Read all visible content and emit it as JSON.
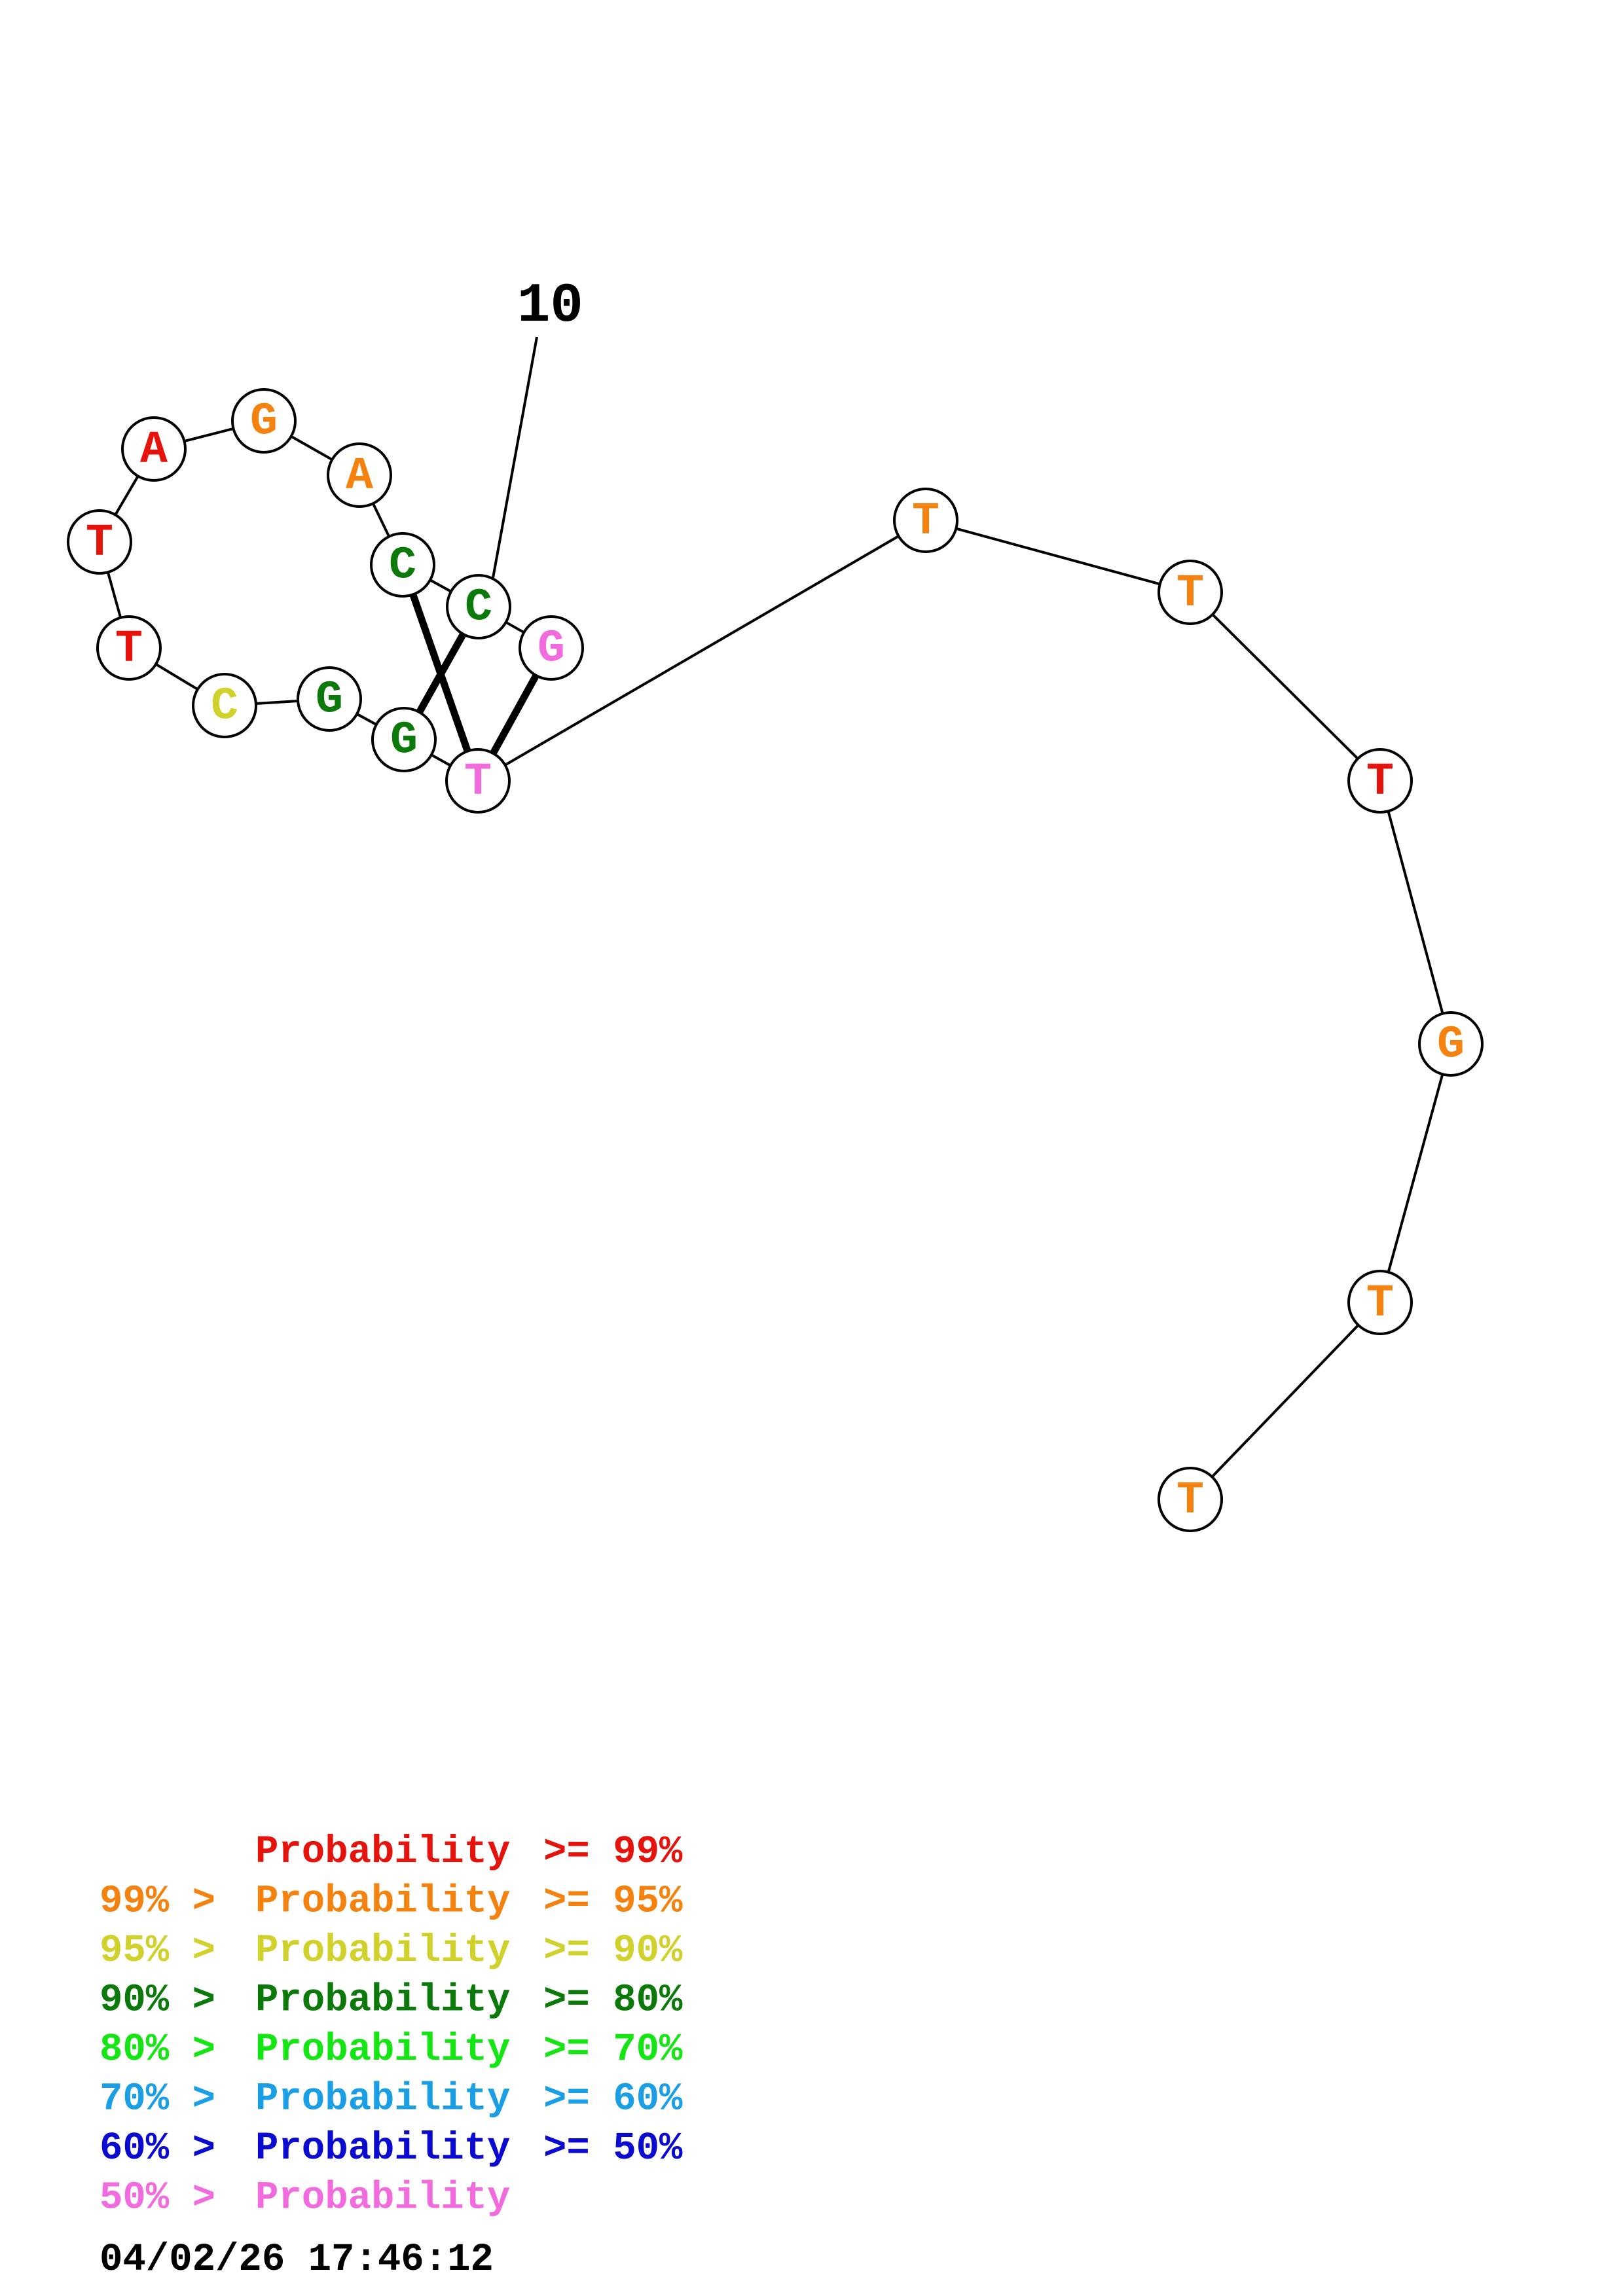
{
  "structure": {
    "nucleotides": [
      {
        "base": "G",
        "color": "#f26bde"
      },
      {
        "base": "C",
        "color": "#0b7a0b"
      },
      {
        "base": "C",
        "color": "#0b7a0b"
      },
      {
        "base": "A",
        "color": "#f5820f"
      },
      {
        "base": "G",
        "color": "#f5820f"
      },
      {
        "base": "A",
        "color": "#e6120c"
      },
      {
        "base": "T",
        "color": "#e6120c"
      },
      {
        "base": "T",
        "color": "#e6120c"
      },
      {
        "base": "C",
        "color": "#d1d12c"
      },
      {
        "base": "G",
        "color": "#0b7a0b"
      },
      {
        "base": "G",
        "color": "#0b7a0b"
      },
      {
        "base": "T",
        "color": "#f26bde"
      },
      {
        "base": "T",
        "color": "#f5820f"
      },
      {
        "base": "T",
        "color": "#f5820f"
      },
      {
        "base": "T",
        "color": "#e6120c"
      },
      {
        "base": "G",
        "color": "#f5820f"
      },
      {
        "base": "T",
        "color": "#f5820f"
      },
      {
        "base": "T",
        "color": "#f5820f"
      }
    ],
    "base_pairs": [
      [
        1,
        10
      ],
      [
        2,
        11
      ],
      [
        0,
        11
      ]
    ],
    "index_marker": {
      "label": "10",
      "nucleotide": 1
    }
  },
  "legend": [
    {
      "prefix": "",
      "label": "Probability",
      "suffix": ">= 99%",
      "color": "#e6120c"
    },
    {
      "prefix": "99% >",
      "label": "Probability",
      "suffix": ">= 95%",
      "color": "#f5820f"
    },
    {
      "prefix": "95% >",
      "label": "Probability",
      "suffix": ">= 90%",
      "color": "#d1d12c"
    },
    {
      "prefix": "90% >",
      "label": "Probability",
      "suffix": ">= 80%",
      "color": "#0b7a0b"
    },
    {
      "prefix": "80% >",
      "label": "Probability",
      "suffix": ">= 70%",
      "color": "#14e614"
    },
    {
      "prefix": "70% >",
      "label": "Probability",
      "suffix": ">= 60%",
      "color": "#1a9ee6"
    },
    {
      "prefix": "60% >",
      "label": "Probability",
      "suffix": ">= 50%",
      "color": "#0a0ad1"
    },
    {
      "prefix": "50% >",
      "label": "Probability",
      "suffix": "",
      "color": "#f26bde"
    }
  ],
  "timestamp": "04/02/26 17:46:12"
}
